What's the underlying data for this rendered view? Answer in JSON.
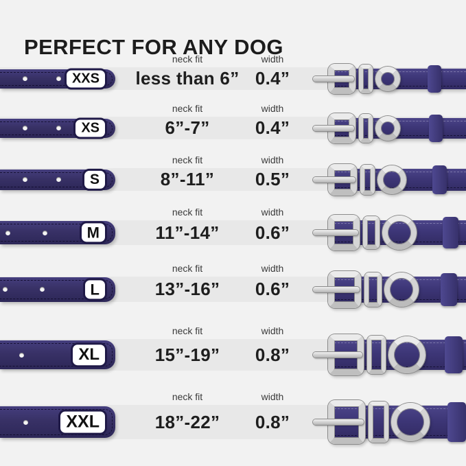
{
  "title": "PERFECT FOR ANY DOG",
  "columns": {
    "neck_fit": "neck fit",
    "width": "width"
  },
  "sizes": [
    {
      "size": "XXS",
      "neck_fit": "less than 6”",
      "width": "0.4”"
    },
    {
      "size": "XS",
      "neck_fit": "6”-7”",
      "width": "0.4”"
    },
    {
      "size": "S",
      "neck_fit": "8”-11”",
      "width": "0.5”"
    },
    {
      "size": "M",
      "neck_fit": "11”-14”",
      "width": "0.6”"
    },
    {
      "size": "L",
      "neck_fit": "13”-16”",
      "width": "0.6”"
    },
    {
      "size": "XL",
      "neck_fit": "15”-19”",
      "width": "0.8”"
    },
    {
      "size": "XXL",
      "neck_fit": "18”-22”",
      "width": "0.8”"
    }
  ],
  "icons": {
    "left_illustration": "collar-strap-with-holes",
    "right_illustration": "collar-buckle-with-d-ring"
  },
  "colors": {
    "background": "#f2f2f2",
    "row_band": "#e8e8e8",
    "strap_navy": "#38316c",
    "metal_silver": "#d6d6d6",
    "title_text": "#1c1c1c",
    "value_text": "#1e1e1e",
    "label_text": "#3a3a3a",
    "badge_background": "#ffffff"
  }
}
